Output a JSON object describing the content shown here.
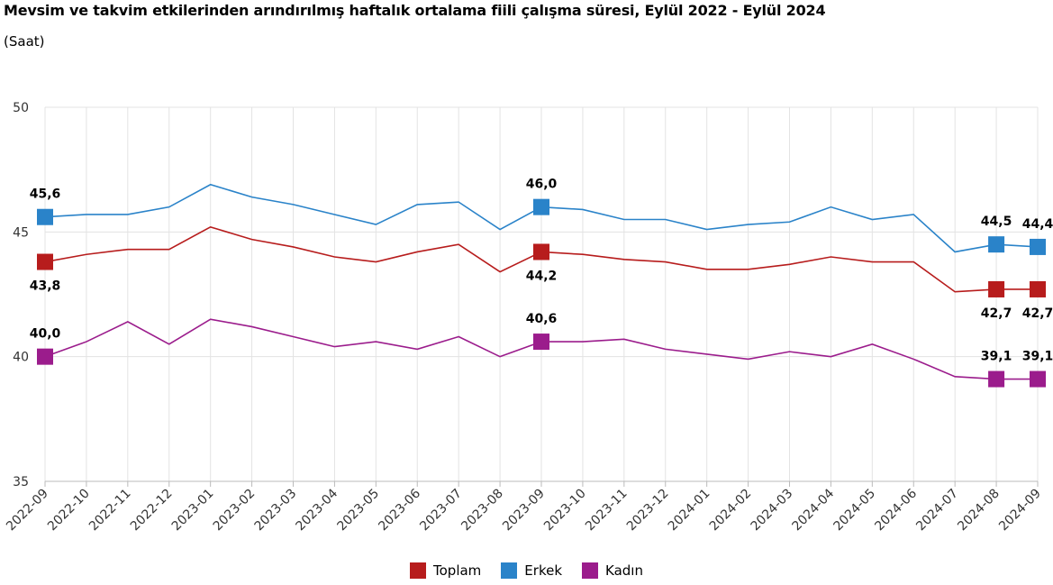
{
  "title": "Mevsim ve takvim etkilerinden arındırılmış haftalık ortalama fiili çalışma süresi, Eylül 2022 - Eylül 2024",
  "subtitle": "(Saat)",
  "chart_data": {
    "type": "line",
    "title": "Mevsim ve takvim etkilerinden arındırılmış haftalık ortalama fiili çalışma süresi, Eylül 2022 - Eylül 2024",
    "ylabel": "(Saat)",
    "xlabel": "",
    "ylim": [
      35,
      50
    ],
    "yticks": [
      35,
      40,
      45,
      50
    ],
    "grid": true,
    "legend_position": "bottom",
    "categories": [
      "2022-09",
      "2022-10",
      "2022-11",
      "2022-12",
      "2023-01",
      "2023-02",
      "2023-03",
      "2023-04",
      "2023-05",
      "2023-06",
      "2023-07",
      "2023-08",
      "2023-09",
      "2023-10",
      "2023-11",
      "2023-12",
      "2024-01",
      "2024-02",
      "2024-03",
      "2024-04",
      "2024-05",
      "2024-06",
      "2024-07",
      "2024-08",
      "2024-09"
    ],
    "series": [
      {
        "name": "Toplam",
        "color": "#b71c1c",
        "values": [
          43.8,
          44.1,
          44.3,
          44.3,
          45.2,
          44.7,
          44.4,
          44.0,
          43.8,
          44.2,
          44.5,
          43.4,
          44.2,
          44.1,
          43.9,
          43.8,
          43.5,
          43.5,
          43.7,
          44.0,
          43.8,
          43.8,
          42.6,
          42.7,
          42.7
        ],
        "labels": {
          "0": "43,8",
          "12": "44,2",
          "23": "42,7",
          "24": "42,7"
        },
        "label_side": "below"
      },
      {
        "name": "Erkek",
        "color": "#2a83c9",
        "values": [
          45.6,
          45.7,
          45.7,
          46.0,
          46.9,
          46.4,
          46.1,
          45.7,
          45.3,
          46.1,
          46.2,
          45.1,
          46.0,
          45.9,
          45.5,
          45.5,
          45.1,
          45.3,
          45.4,
          46.0,
          45.5,
          45.7,
          44.2,
          44.5,
          44.4
        ],
        "labels": {
          "0": "45,6",
          "12": "46,0",
          "23": "44,5",
          "24": "44,4"
        },
        "label_side": "above"
      },
      {
        "name": "Kadın",
        "color": "#9b1c8c",
        "values": [
          40.0,
          40.6,
          41.4,
          40.5,
          41.5,
          41.2,
          40.8,
          40.4,
          40.6,
          40.3,
          40.8,
          40.0,
          40.6,
          40.6,
          40.7,
          40.3,
          40.1,
          39.9,
          40.2,
          40.0,
          40.5,
          39.9,
          39.2,
          39.1,
          39.1
        ],
        "labels": {
          "0": "40,0",
          "12": "40,6",
          "23": "39,1",
          "24": "39,1"
        },
        "label_side": "above"
      }
    ]
  }
}
